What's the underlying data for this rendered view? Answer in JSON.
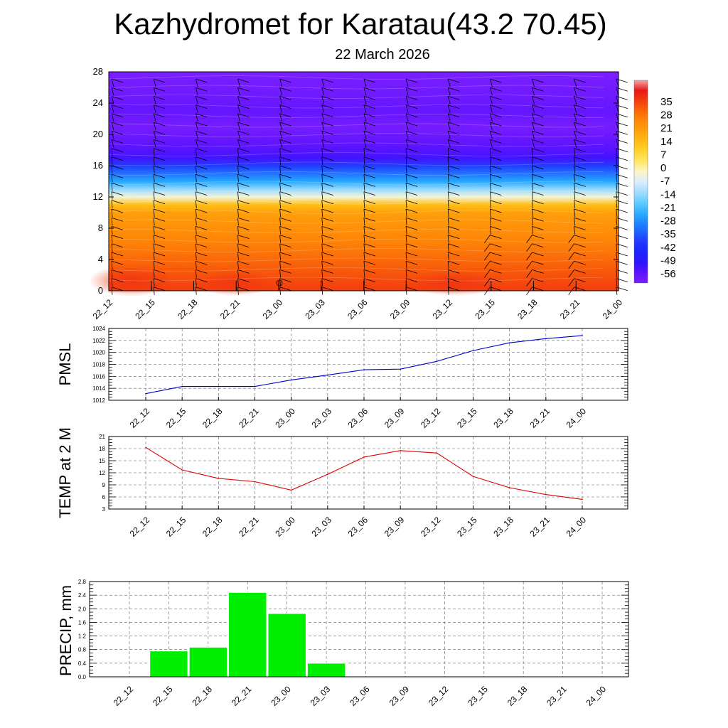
{
  "title": "Kazhydromet for Karatau(43.2 70.45)",
  "subtitle": "22 March 2026",
  "time_labels": [
    "22_12",
    "22_15",
    "22_18",
    "22_21",
    "23_00",
    "23_03",
    "23_06",
    "23_09",
    "23_12",
    "23_15",
    "23_18",
    "23_21",
    "24_00"
  ],
  "chart_data": [
    {
      "type": "heatmap",
      "title": "",
      "ylabel": "",
      "ylim": [
        0,
        28
      ],
      "y_ticks": [
        0,
        4,
        8,
        12,
        16,
        20,
        24,
        28
      ],
      "colorbar_labels": [
        "35",
        "28",
        "21",
        "14",
        "7",
        "0",
        "-7",
        "-14",
        "-21",
        "-28",
        "-35",
        "-42",
        "-49",
        "-56"
      ],
      "levels": [
        0,
        3,
        6,
        8,
        10,
        11,
        12,
        13,
        14,
        16,
        17,
        19,
        21,
        23,
        25,
        28
      ],
      "temps": [
        25,
        21,
        16,
        13,
        10,
        4,
        -12,
        -22,
        -32,
        -45,
        -58,
        -62,
        -65,
        -62,
        -64,
        -66
      ],
      "colors": {
        "warm_peak": "#f53a10",
        "cool": "#7a1fff"
      }
    },
    {
      "type": "line",
      "ylabel": "PMSL",
      "ylim": [
        1012,
        1024
      ],
      "y_ticks": [
        "1012",
        "1014",
        "1016",
        "1018",
        "1020",
        "1022",
        "1024"
      ],
      "y_tick_values": [
        1012,
        1014,
        1016,
        1018,
        1020,
        1022,
        1024
      ],
      "x": [
        "22_12",
        "22_15",
        "22_18",
        "22_21",
        "23_00",
        "23_03",
        "23_06",
        "23_09",
        "23_12",
        "23_15",
        "23_18",
        "23_21",
        "24_00"
      ],
      "values": [
        1013.1,
        1014.3,
        1014.3,
        1014.3,
        1015.4,
        1016.2,
        1017.1,
        1017.2,
        1018.5,
        1020.3,
        1021.6,
        1022.3,
        1022.8
      ],
      "color": "#0000cc"
    },
    {
      "type": "line",
      "ylabel": "TEMP at 2 M",
      "ylim": [
        3,
        21
      ],
      "y_ticks": [
        "3",
        "6",
        "9",
        "12",
        "15",
        "18",
        "21"
      ],
      "y_tick_values": [
        3,
        6,
        9,
        12,
        15,
        18,
        21
      ],
      "x": [
        "22_12",
        "22_15",
        "22_18",
        "22_21",
        "23_00",
        "23_03",
        "23_06",
        "23_09",
        "23_12",
        "23_15",
        "23_18",
        "23_21",
        "24_00"
      ],
      "values": [
        18.3,
        12.7,
        10.6,
        9.8,
        7.7,
        11.6,
        15.9,
        17.5,
        16.9,
        11.1,
        8.3,
        6.6,
        5.4
      ],
      "color": "#dd0000"
    },
    {
      "type": "bar",
      "ylabel": "PRECIP, mm",
      "ylim": [
        0,
        2.8
      ],
      "y_ticks": [
        "0.0",
        "0.4",
        "0.8",
        "1.2",
        "1.6",
        "2.0",
        "2.4",
        "2.8"
      ],
      "y_tick_values": [
        0,
        0.4,
        0.8,
        1.2,
        1.6,
        2.0,
        2.4,
        2.8
      ],
      "categories": [
        "22_15",
        "22_18",
        "22_21",
        "23_00",
        "23_03"
      ],
      "values": [
        0.76,
        0.87,
        2.48,
        1.86,
        0.4
      ],
      "color": "#00ee00"
    }
  ]
}
